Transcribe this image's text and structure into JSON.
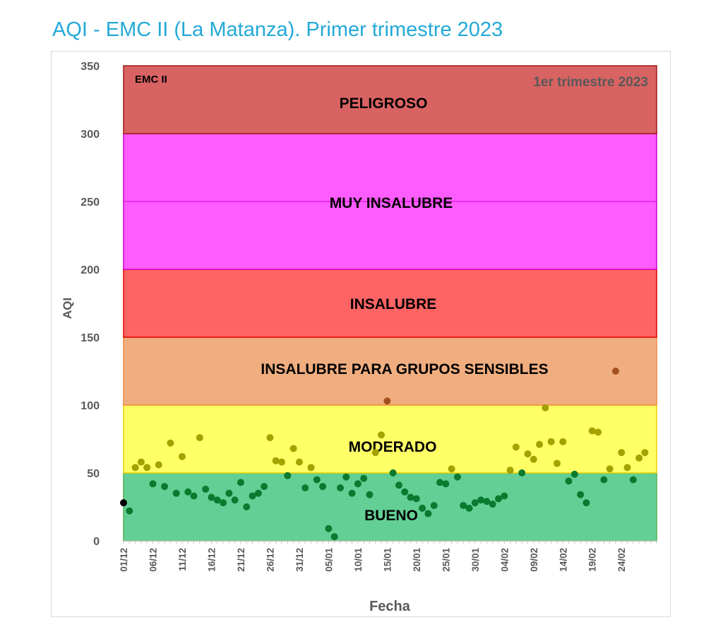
{
  "chart_data": {
    "type": "scatter",
    "title": "AQI - EMC II (La Matanza). Primer trimestre 2023",
    "inset_left": "EMC II",
    "inset_right": "1er trimestre 2023",
    "xlabel": "Fecha",
    "ylabel": "AQI",
    "ylim": [
      0,
      350
    ],
    "yticks": [
      0,
      50,
      100,
      150,
      200,
      250,
      300,
      350
    ],
    "x_start": "01/12",
    "x_tick_labels": [
      "01/12",
      "06/12",
      "11/12",
      "16/12",
      "21/12",
      "26/12",
      "31/12",
      "05/01",
      "10/01",
      "15/01",
      "20/01",
      "25/01",
      "30/01",
      "04/02",
      "09/02",
      "14/02",
      "19/02",
      "24/02"
    ],
    "num_days": 91,
    "grid": false,
    "bands": [
      {
        "label": "BUENO",
        "from": 0,
        "to": 50,
        "color": "#63cf95",
        "border": "#4caf50"
      },
      {
        "label": "MODERADO",
        "from": 50,
        "to": 100,
        "color": "#ffff66",
        "border": "#f0d000"
      },
      {
        "label": "INSALUBRE PARA GRUPOS SENSIBLES",
        "from": 100,
        "to": 150,
        "color": "#f0ae80",
        "border": "#f28a3c"
      },
      {
        "label": "INSALUBRE",
        "from": 150,
        "to": 200,
        "color": "#ff6464",
        "border": "#e00000"
      },
      {
        "label": "MUY INSALUBRE",
        "from": 200,
        "to": 300,
        "color": "#ff5cff",
        "border": "#d000d0"
      },
      {
        "label": "PELIGROSO",
        "from": 300,
        "to": 350,
        "color": "#d96363",
        "border": "#a01818"
      }
    ],
    "point_colors": {
      "bueno": "#0a7a2e",
      "moderado": "#a4a100",
      "sensibles": "#a5511e",
      "first": "#000000"
    },
    "values": [
      28,
      22,
      54,
      58,
      54,
      42,
      56,
      40,
      72,
      35,
      62,
      36,
      33,
      76,
      38,
      32,
      30,
      28,
      35,
      30,
      43,
      25,
      33,
      35,
      40,
      76,
      59,
      58,
      48,
      68,
      58,
      39,
      54,
      45,
      40,
      9,
      3,
      39,
      47,
      35,
      42,
      46,
      34,
      65,
      78,
      103,
      50,
      41,
      36,
      32,
      31,
      24,
      20,
      26,
      43,
      42,
      53,
      47,
      26,
      24,
      28,
      30,
      29,
      27,
      31,
      33,
      52,
      69,
      50,
      64,
      60,
      71,
      98,
      73,
      57,
      73,
      44,
      49,
      34,
      28,
      81,
      80,
      45,
      53,
      125,
      65,
      54,
      45,
      61,
      65
    ]
  }
}
